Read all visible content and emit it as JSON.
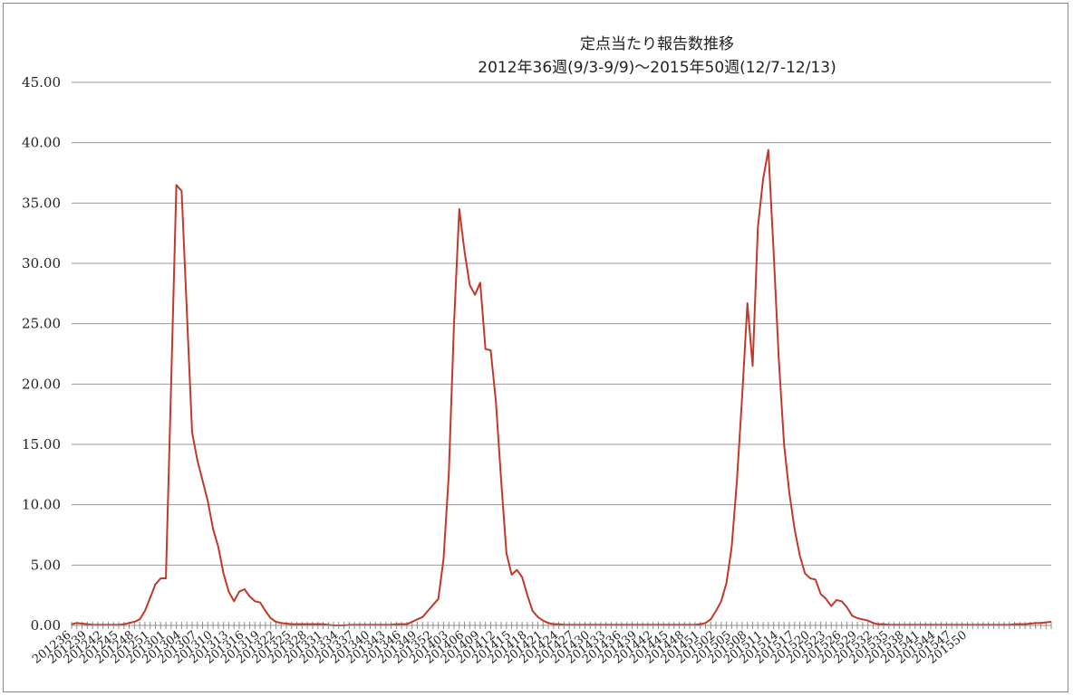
{
  "chart_data": {
    "type": "line",
    "title": "定点当たり報告数推移",
    "subtitle": "2012年36週(9/3-9/9)〜2015年50週(12/7-12/13)",
    "xlabel": "",
    "ylabel": "",
    "ylim": [
      0,
      45
    ],
    "yticks": [
      "45.00",
      "40.00",
      "35.00",
      "30.00",
      "25.00",
      "20.00",
      "15.00",
      "10.00",
      "5.00",
      "0.00"
    ],
    "ytick_values": [
      45,
      40,
      35,
      30,
      25,
      20,
      15,
      10,
      5,
      0
    ],
    "grid": true,
    "legend": "none",
    "x_tick_labels": [
      "201236",
      "201239",
      "201242",
      "201245",
      "201248",
      "201251",
      "201301",
      "201304",
      "201307",
      "201310",
      "201313",
      "201316",
      "201319",
      "201322",
      "201325",
      "201328",
      "201331",
      "201334",
      "201337",
      "201340",
      "201343",
      "201346",
      "201349",
      "201352",
      "201403",
      "201406",
      "201409",
      "201412",
      "201415",
      "201418",
      "201421",
      "201424",
      "201427",
      "201430",
      "201433",
      "201436",
      "201439",
      "201442",
      "201445",
      "201448",
      "201451",
      "201502",
      "201505",
      "201508",
      "201511",
      "201514",
      "201517",
      "201520",
      "201523",
      "201526",
      "201529",
      "201532",
      "201535",
      "201538",
      "201541",
      "201544",
      "201547",
      "201550"
    ],
    "series": [
      {
        "color": "#c0392b",
        "values": [
          0.1,
          0.2,
          0.15,
          0.1,
          0.05,
          0.05,
          0.05,
          0.05,
          0.05,
          0.05,
          0.1,
          0.2,
          0.3,
          0.5,
          1.2,
          2.3,
          3.4,
          3.9,
          3.9,
          20.0,
          36.5,
          36.0,
          26.0,
          16.0,
          13.7,
          12.0,
          10.3,
          8.0,
          6.5,
          4.3,
          2.8,
          2.0,
          2.8,
          3.0,
          2.4,
          2.0,
          1.9,
          1.2,
          0.6,
          0.3,
          0.2,
          0.15,
          0.1,
          0.1,
          0.1,
          0.1,
          0.1,
          0.1,
          0.1,
          0.05,
          0.0,
          0.0,
          0.0,
          0.05,
          0.05,
          0.05,
          0.05,
          0.05,
          0.05,
          0.05,
          0.05,
          0.05,
          0.1,
          0.1,
          0.1,
          0.3,
          0.5,
          0.7,
          1.2,
          1.7,
          2.2,
          5.5,
          12.5,
          25.0,
          34.5,
          31.0,
          28.2,
          27.4,
          28.4,
          22.9,
          22.8,
          18.5,
          12.0,
          6.0,
          4.2,
          4.6,
          4.0,
          2.5,
          1.2,
          0.7,
          0.4,
          0.2,
          0.1,
          0.1,
          0.05,
          0.05,
          0.05,
          0.05,
          0.05,
          0.05,
          0.05,
          0.05,
          0.05,
          0.05,
          0.05,
          0.05,
          0.05,
          0.05,
          0.05,
          0.05,
          0.05,
          0.05,
          0.05,
          0.05,
          0.05,
          0.05,
          0.05,
          0.05,
          0.05,
          0.05,
          0.1,
          0.2,
          0.5,
          1.2,
          2.0,
          3.5,
          6.5,
          12.0,
          19.0,
          26.7,
          21.5,
          33.0,
          37.0,
          39.4,
          31.0,
          22.0,
          15.0,
          11.0,
          8.0,
          5.8,
          4.3,
          3.9,
          3.8,
          2.6,
          2.2,
          1.6,
          2.1,
          2.0,
          1.5,
          0.8,
          0.6,
          0.5,
          0.4,
          0.2,
          0.1,
          0.1,
          0.05,
          0.05,
          0.05,
          0.05,
          0.05,
          0.05,
          0.05,
          0.05,
          0.05,
          0.05,
          0.05,
          0.05,
          0.05,
          0.05,
          0.05,
          0.05,
          0.05,
          0.05,
          0.05,
          0.05,
          0.05,
          0.05,
          0.05,
          0.05,
          0.1,
          0.1,
          0.1,
          0.15,
          0.2,
          0.2,
          0.25,
          0.3
        ]
      }
    ]
  }
}
